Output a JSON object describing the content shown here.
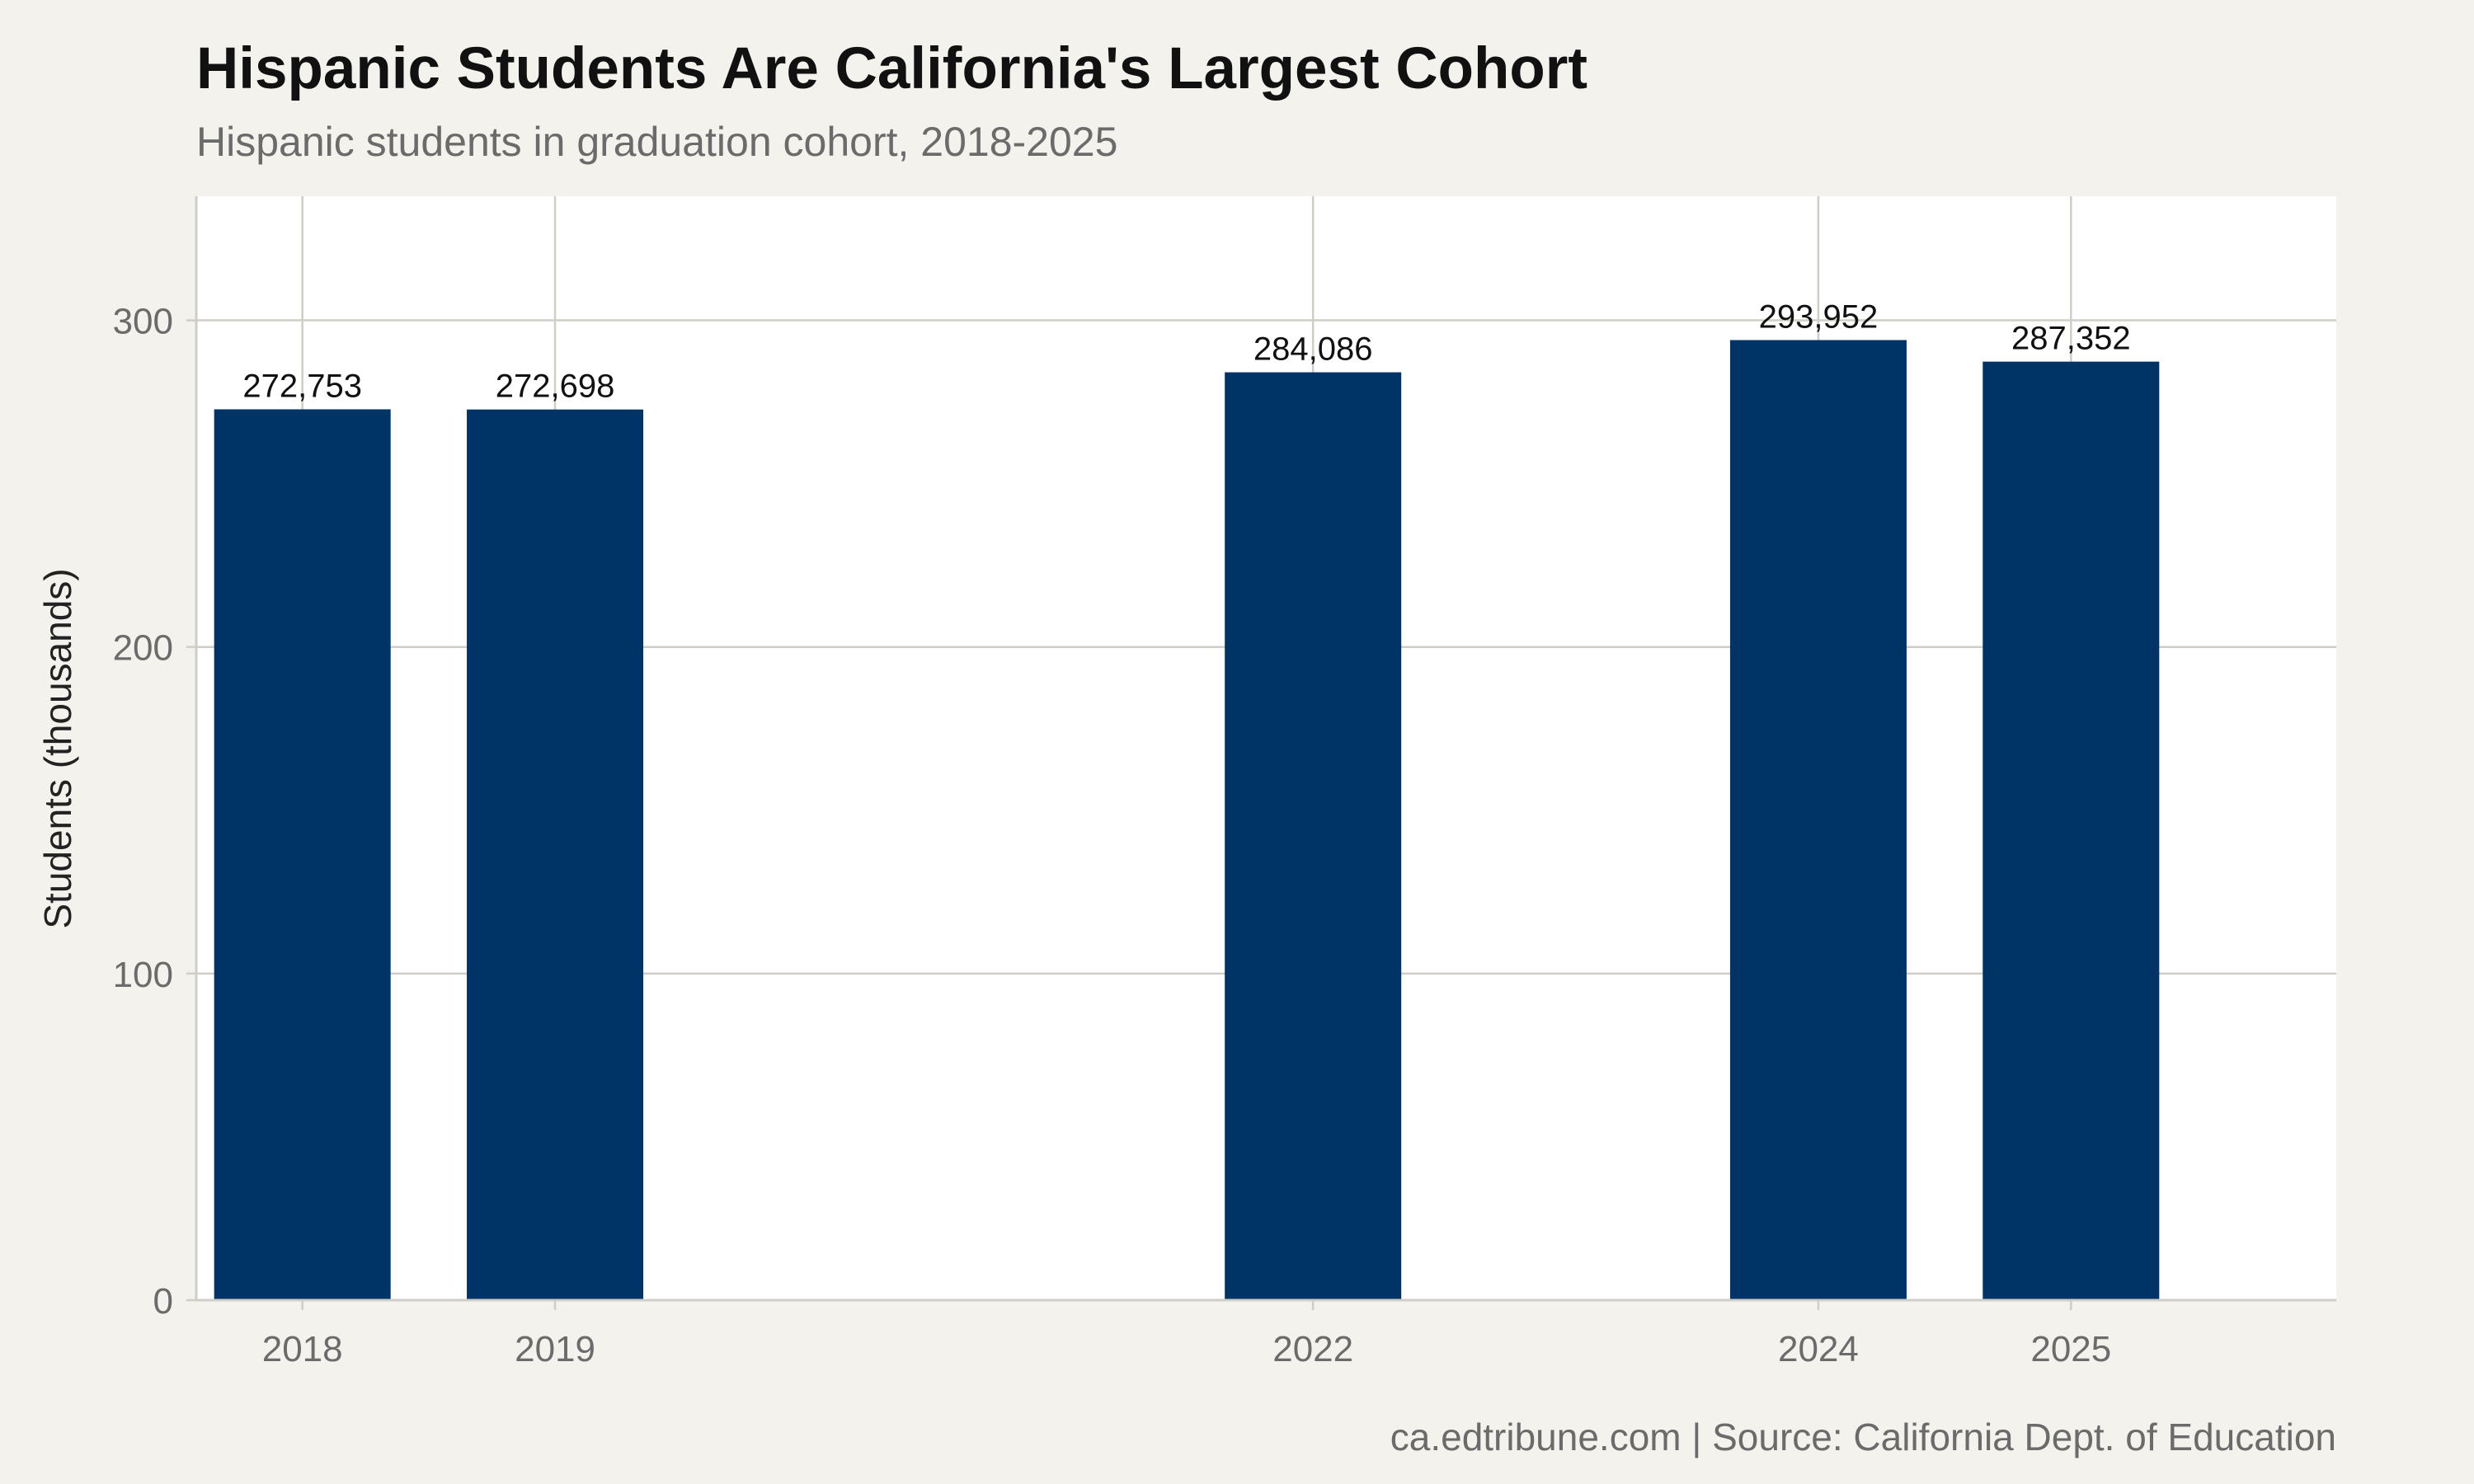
{
  "chart_data": {
    "type": "bar",
    "title": "Hispanic Students Are California's Largest Cohort",
    "subtitle": "Hispanic students in graduation cohort, 2018-2025",
    "xlabel": "",
    "ylabel": "Students (thousands)",
    "caption": "ca.edtribune.com | Source: California Dept. of Education",
    "x": [
      2018,
      2019,
      2022,
      2024,
      2025
    ],
    "categories": [
      "2018",
      "2019",
      "2022",
      "2024",
      "2025"
    ],
    "values": [
      272.753,
      272.698,
      284.086,
      293.952,
      287.352
    ],
    "value_labels": [
      "272,753",
      "272,698",
      "284,086",
      "293,952",
      "287,352"
    ],
    "y_ticks": [
      0,
      100,
      200,
      300
    ],
    "y_tick_labels": [
      "0",
      "100",
      "200",
      "300"
    ],
    "ylim": [
      0,
      338
    ],
    "xlim": [
      2017.58,
      2026.05
    ],
    "grid": true,
    "legend": "none",
    "colors": {
      "bar": "#003366",
      "background": "#f4f2ed",
      "panel": "#ffffff",
      "grid": "#cfcdc5",
      "title": "#111111",
      "muted": "#6b6b6b"
    }
  }
}
